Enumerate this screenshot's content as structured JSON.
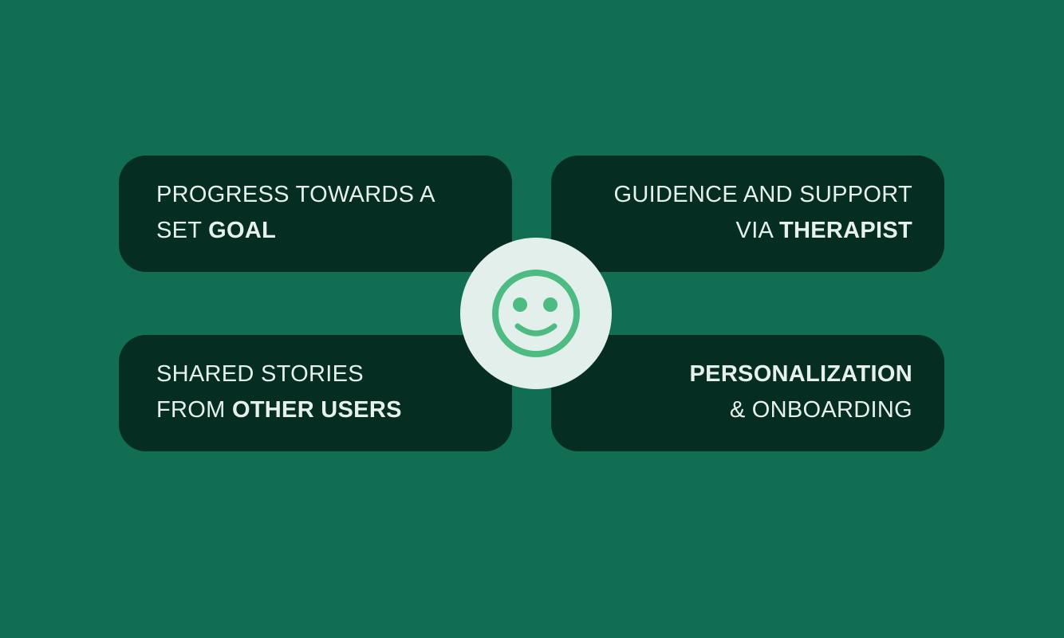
{
  "colors": {
    "background": "#116e53",
    "card": "#062d22",
    "card_text": "#e7f1ec",
    "circle": "#e3efeb",
    "smiley": "#4dbb82"
  },
  "center_icon": "smiley-face-icon",
  "cards": {
    "top_left": {
      "line1": "PROGRESS TOWARDS A",
      "line2_prefix": "SET ",
      "line2_bold": "GOAL"
    },
    "top_right": {
      "line1": "GUIDENCE AND SUPPORT",
      "line2_prefix": "VIA ",
      "line2_bold": "THERAPIST"
    },
    "bottom_left": {
      "line1": "SHARED STORIES",
      "line2_prefix": "FROM ",
      "line2_bold": "OTHER USERS"
    },
    "bottom_right": {
      "line1_bold": "PERSONALIZATION",
      "line2": "& ONBOARDING"
    }
  }
}
